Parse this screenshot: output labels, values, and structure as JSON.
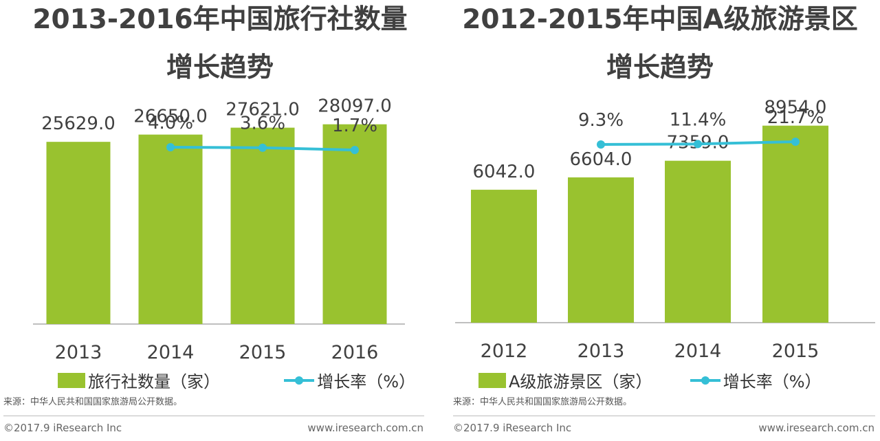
{
  "chart_data": [
    {
      "type": "bar",
      "title_line1": "2013-2016年中国旅行社数量",
      "title_line2": "增长趋势",
      "categories": [
        "2013",
        "2014",
        "2015",
        "2016"
      ],
      "series": [
        {
          "name": "旅行社数量（家）",
          "type": "bar",
          "values": [
            25629.0,
            26650.0,
            27621.0,
            28097.0
          ],
          "labels": [
            "25629.0",
            "26650.0",
            "27621.0",
            "28097.0"
          ]
        },
        {
          "name": "增长率（%）",
          "type": "line",
          "values": [
            null,
            4.0,
            3.6,
            1.7
          ],
          "labels": [
            "",
            "4.0%",
            "3.6%",
            "1.7%"
          ]
        }
      ],
      "legend": [
        "旅行社数量（家）",
        "增长率（%）"
      ],
      "ylim": [
        0,
        33000
      ],
      "source": "来源：中华人民共和国国家旅游局公开数据。",
      "footer_left": "©2017.9 iResearch Inc",
      "footer_right": "www.iresearch.com.cn"
    },
    {
      "type": "bar",
      "title_line1": "2012-2015年中国A级旅游景区",
      "title_line2": "增长趋势",
      "categories": [
        "2012",
        "2013",
        "2014",
        "2015"
      ],
      "series": [
        {
          "name": "A级旅游景区（家）",
          "type": "bar",
          "values": [
            6042.0,
            6604.0,
            7359.0,
            8954.0
          ],
          "labels": [
            "6042.0",
            "6604.0",
            "7359.0",
            "8954.0"
          ]
        },
        {
          "name": "增长率（%）",
          "type": "line",
          "values": [
            null,
            9.3,
            11.4,
            21.7
          ],
          "labels": [
            "",
            "9.3%",
            "11.4%",
            "21.7%"
          ]
        }
      ],
      "legend": [
        "A级旅游景区（家）",
        "增长率（%）"
      ],
      "ylim": [
        0,
        10600
      ],
      "source": "来源：中华人民共和国国家旅游局公开数据。",
      "footer_left": "©2017.9 iResearch Inc",
      "footer_right": "www.iresearch.com.cn"
    }
  ],
  "colors": {
    "bar": "#99c22f",
    "line": "#35bfd6",
    "text": "#404040",
    "axis": "#aaaaaa"
  }
}
